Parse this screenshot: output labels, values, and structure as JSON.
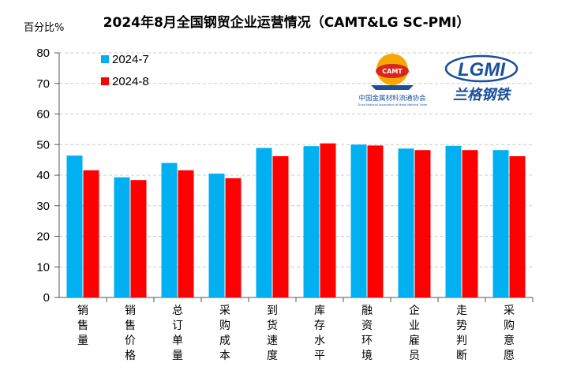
{
  "chart_data": {
    "type": "bar",
    "title": "2024年8月全国钢贸企业运营情况（CAMT&LG SC-PMI）",
    "ylabel": "百分比%",
    "ylim": [
      0,
      80
    ],
    "yticks": [
      0,
      10,
      20,
      30,
      40,
      50,
      60,
      70,
      80
    ],
    "grid": true,
    "legend": "top-left",
    "categories": [
      "销售量",
      "销售价格",
      "总订单量",
      "采购成本",
      "到货速度",
      "库存水平",
      "融资环境",
      "企业雇员",
      "走势判断",
      "采购意愿"
    ],
    "series": [
      {
        "name": "2024-7",
        "color": "#00B0F0",
        "values": [
          46.4,
          39.3,
          44.0,
          40.5,
          48.9,
          49.5,
          50.0,
          48.7,
          49.6,
          48.2
        ]
      },
      {
        "name": "2024-8",
        "color": "#FF0000",
        "values": [
          41.6,
          38.4,
          41.6,
          39.0,
          46.2,
          50.4,
          49.7,
          48.2,
          48.2,
          46.2
        ]
      }
    ]
  },
  "logos": {
    "camt_text": "中国金属材料流通协会",
    "camt_sub": "China National Association of Metal Material Trade",
    "camt_badge": "CAMT",
    "lgmi_badge": "LGMI",
    "lgmi_text": "兰格钢铁"
  }
}
